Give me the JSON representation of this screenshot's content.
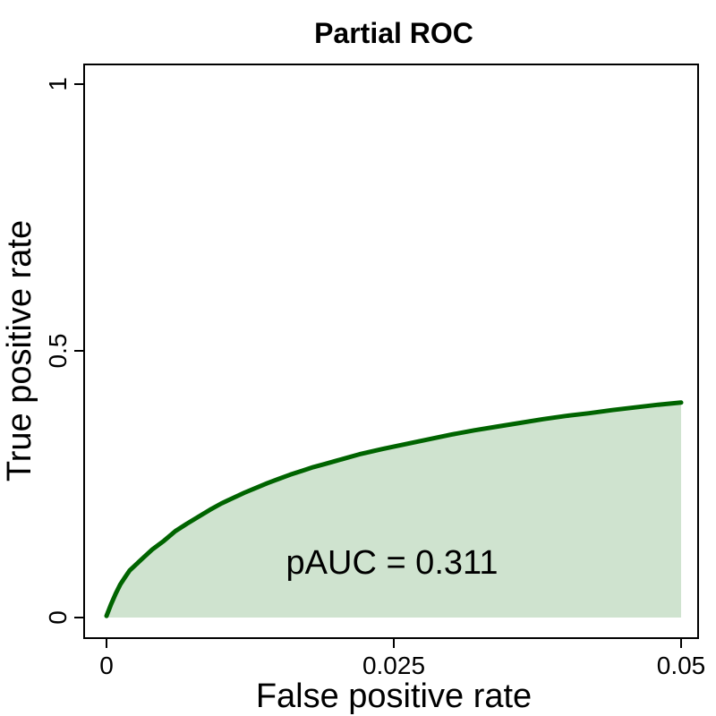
{
  "chart_data": {
    "type": "area",
    "title": "Partial ROC",
    "xlabel": "False positive rate",
    "ylabel": "True positive rate",
    "xlim": [
      0,
      0.05
    ],
    "ylim": [
      0,
      1
    ],
    "x_ticks": [
      {
        "value": 0,
        "label": "0"
      },
      {
        "value": 0.025,
        "label": "0.025"
      },
      {
        "value": 0.05,
        "label": "0.05"
      }
    ],
    "y_ticks": [
      {
        "value": 0,
        "label": "0"
      },
      {
        "value": 0.5,
        "label": "0.5"
      },
      {
        "value": 1,
        "label": "1"
      }
    ],
    "grid": false,
    "annotation": "pAUC = 0.311",
    "colors": {
      "line": "#006400",
      "fill": "#cfe3cf",
      "frame": "#000000"
    },
    "series": [
      {
        "name": "ROC",
        "x": [
          0,
          0.0004,
          0.0008,
          0.0012,
          0.0016,
          0.002,
          0.003,
          0.004,
          0.005,
          0.006,
          0.007,
          0.008,
          0.009,
          0.01,
          0.011,
          0.012,
          0.013,
          0.014,
          0.015,
          0.016,
          0.017,
          0.018,
          0.019,
          0.02,
          0.022,
          0.024,
          0.026,
          0.028,
          0.03,
          0.032,
          0.034,
          0.036,
          0.038,
          0.04,
          0.042,
          0.044,
          0.046,
          0.048,
          0.05
        ],
        "y": [
          0.003,
          0.025,
          0.045,
          0.062,
          0.075,
          0.088,
          0.108,
          0.128,
          0.144,
          0.162,
          0.176,
          0.189,
          0.202,
          0.214,
          0.224,
          0.234,
          0.243,
          0.252,
          0.26,
          0.268,
          0.275,
          0.282,
          0.288,
          0.294,
          0.306,
          0.316,
          0.325,
          0.334,
          0.343,
          0.351,
          0.358,
          0.365,
          0.372,
          0.378,
          0.383,
          0.389,
          0.394,
          0.399,
          0.403
        ]
      }
    ]
  }
}
